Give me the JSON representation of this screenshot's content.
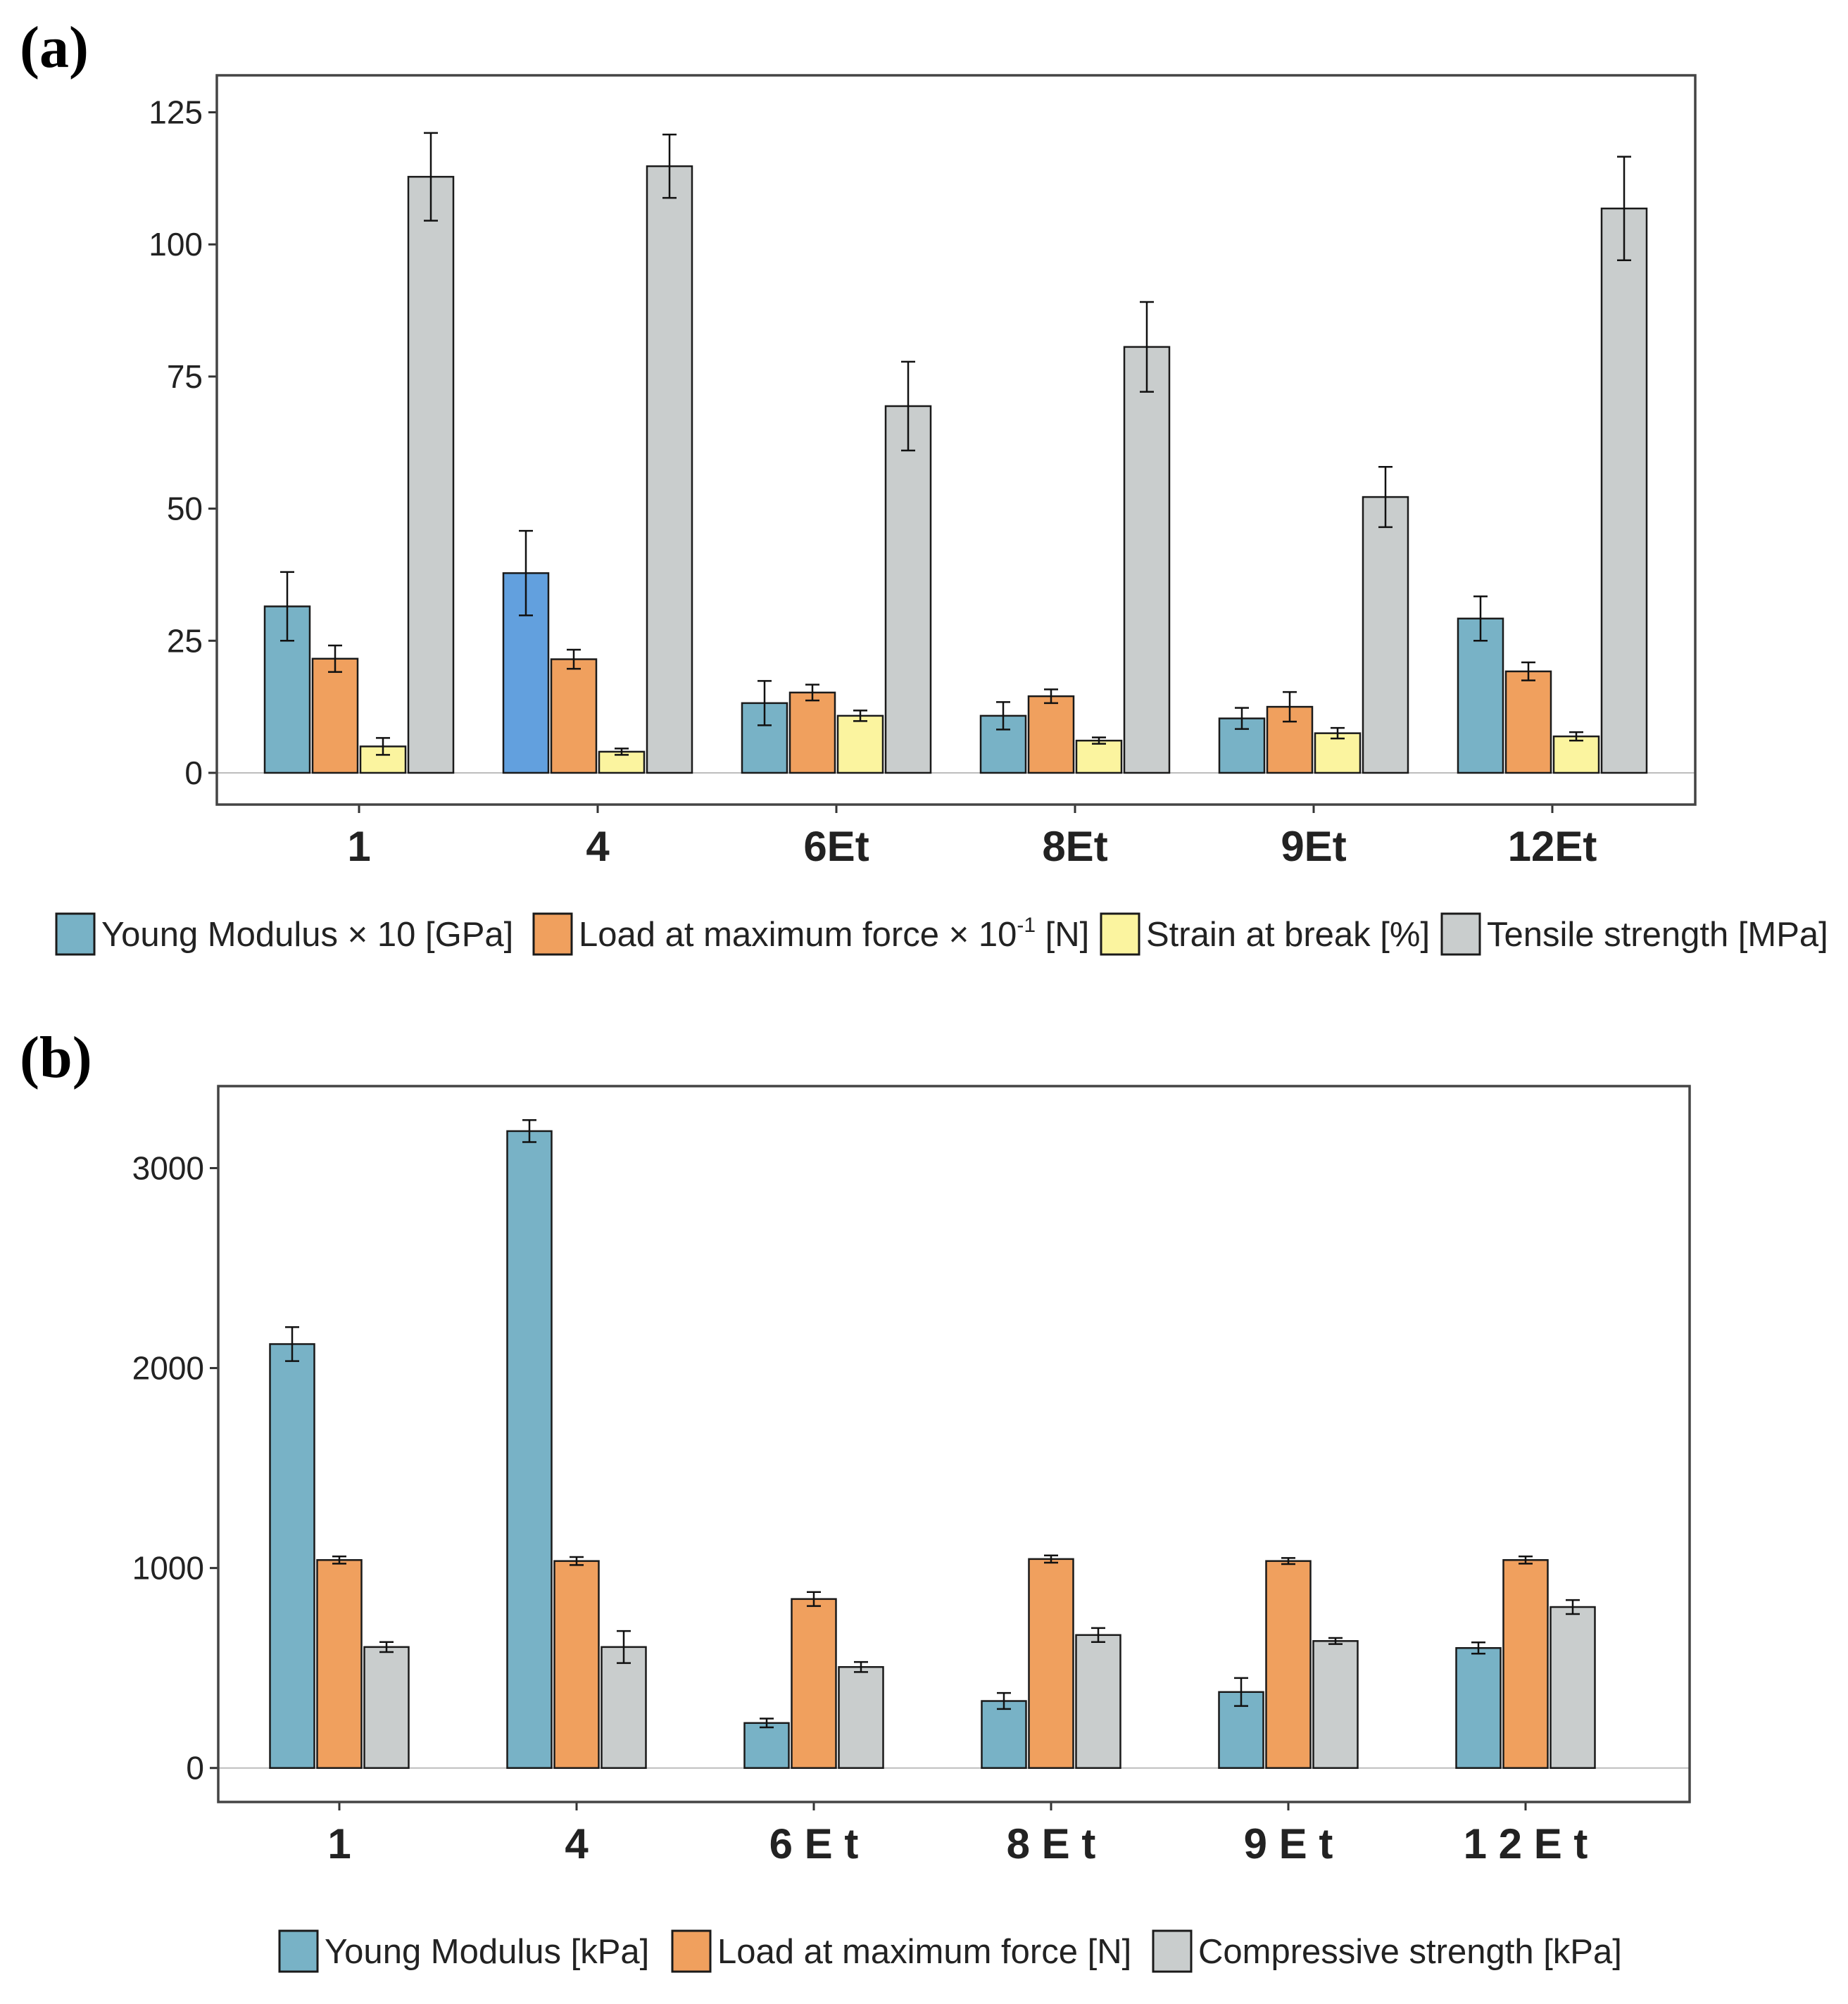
{
  "chart_data": [
    {
      "panel": "(a)",
      "type": "bar",
      "categories": [
        "1",
        "4",
        "6Et",
        "8Et",
        "9Et",
        "12Et"
      ],
      "ylim": [
        -6,
        132
      ],
      "yticks": [
        0,
        25,
        50,
        75,
        100,
        125
      ],
      "series": [
        {
          "name": "Young Modulus × 10 [GPa]",
          "color": "#78b2c6",
          "values": [
            31.5,
            37.8,
            13.2,
            10.8,
            10.3,
            29.2
          ],
          "errors": [
            6.5,
            8.0,
            4.2,
            2.6,
            2.0,
            4.2
          ],
          "highlight_index": 1,
          "highlight_color": "#62a0de"
        },
        {
          "name": "Load at maximum force × 10-1 [N]",
          "color": "#f0a05e",
          "values": [
            21.6,
            21.5,
            15.2,
            14.5,
            12.5,
            19.2
          ],
          "errors": [
            2.5,
            1.8,
            1.5,
            1.3,
            2.8,
            1.7
          ],
          "name_main": "Load at maximum force × 10",
          "name_sup": "-1",
          "name_tail": " [N]"
        },
        {
          "name": "Strain at break [%]",
          "color": "#fbf49f",
          "values": [
            5.0,
            4.0,
            10.8,
            6.1,
            7.5,
            6.9
          ],
          "errors": [
            1.6,
            0.6,
            1.0,
            0.6,
            1.0,
            0.8
          ]
        },
        {
          "name": "Tensile strength [MPa]",
          "color": "#c9cdcd",
          "values": [
            112.8,
            114.8,
            69.4,
            80.6,
            52.2,
            106.8
          ],
          "errors": [
            8.3,
            6.0,
            8.4,
            8.5,
            5.7,
            9.8
          ]
        }
      ]
    },
    {
      "panel": "(b)",
      "type": "bar",
      "categories": [
        "1",
        "4",
        "6 E t",
        "8 E t",
        "9 E t",
        "1 2 E t"
      ],
      "ylim": [
        -170,
        3410
      ],
      "yticks": [
        0,
        1000,
        2000,
        3000
      ],
      "series": [
        {
          "name": "Young Modulus [kPa]",
          "color": "#78b2c6",
          "values": [
            2120,
            3185,
            225,
            335,
            380,
            600
          ],
          "errors": [
            85,
            55,
            22,
            40,
            70,
            28
          ]
        },
        {
          "name": "Load at maximum force [N]",
          "color": "#f0a05e",
          "values": [
            1040,
            1035,
            845,
            1045,
            1035,
            1040
          ],
          "errors": [
            18,
            20,
            35,
            18,
            15,
            18
          ]
        },
        {
          "name": "Compressive strength [kPa]",
          "color": "#c9cdcd",
          "values": [
            605,
            605,
            505,
            665,
            635,
            805
          ],
          "errors": [
            25,
            80,
            25,
            35,
            15,
            35
          ]
        }
      ]
    }
  ]
}
